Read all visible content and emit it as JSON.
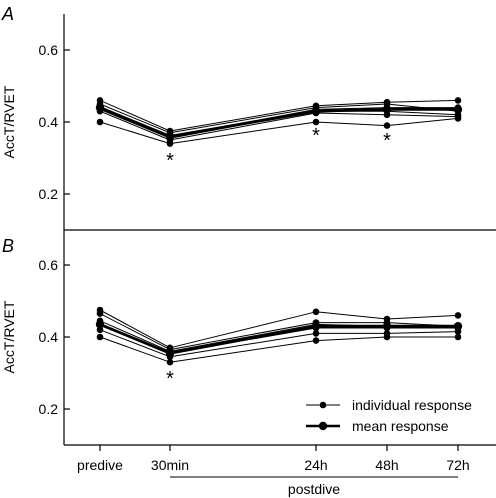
{
  "chart_data": [
    {
      "panel_label": "A",
      "type": "line",
      "ylabel": "AccT/RVET",
      "categories": [
        "predive",
        "30min",
        "24h",
        "48h",
        "72h"
      ],
      "ylim": [
        0.1,
        0.7
      ],
      "yticks": [
        "0.2",
        "0.4",
        "0.6"
      ],
      "ytick_values": [
        0.2,
        0.4,
        0.6
      ],
      "series": [
        {
          "values": [
            0.46,
            0.375,
            0.445,
            0.455,
            0.46
          ]
        },
        {
          "values": [
            0.45,
            0.37,
            0.44,
            0.45,
            0.43
          ]
        },
        {
          "values": [
            0.44,
            0.36,
            0.435,
            0.44,
            0.44
          ]
        },
        {
          "values": [
            0.435,
            0.355,
            0.43,
            0.43,
            0.42
          ]
        },
        {
          "values": [
            0.43,
            0.35,
            0.425,
            0.42,
            0.415
          ]
        },
        {
          "values": [
            0.4,
            0.34,
            0.4,
            0.39,
            0.41
          ]
        }
      ],
      "mean": [
        0.44,
        0.36,
        0.43,
        0.435,
        0.435
      ],
      "significance_marks": [
        {
          "category": "30min",
          "symbol": "*"
        },
        {
          "category": "24h",
          "symbol": "*"
        },
        {
          "category": "48h",
          "symbol": "*"
        }
      ]
    },
    {
      "panel_label": "B",
      "type": "line",
      "ylabel": "AccT/RVET",
      "categories": [
        "predive",
        "30min",
        "24h",
        "48h",
        "72h"
      ],
      "ylim": [
        0.1,
        0.7
      ],
      "yticks": [
        "0.2",
        "0.4",
        "0.6"
      ],
      "ytick_values": [
        0.2,
        0.4,
        0.6
      ],
      "series": [
        {
          "values": [
            0.475,
            0.37,
            0.47,
            0.45,
            0.46
          ]
        },
        {
          "values": [
            0.465,
            0.365,
            0.44,
            0.44,
            0.43
          ]
        },
        {
          "values": [
            0.445,
            0.36,
            0.435,
            0.43,
            0.43
          ]
        },
        {
          "values": [
            0.435,
            0.355,
            0.425,
            0.425,
            0.425
          ]
        },
        {
          "values": [
            0.42,
            0.345,
            0.41,
            0.41,
            0.415
          ]
        },
        {
          "values": [
            0.4,
            0.33,
            0.39,
            0.4,
            0.4
          ]
        }
      ],
      "mean": [
        0.435,
        0.355,
        0.43,
        0.43,
        0.43
      ],
      "significance_marks": [
        {
          "category": "30min",
          "symbol": "*"
        }
      ]
    }
  ],
  "legend": {
    "individual_label": "individual response",
    "mean_label": "mean response"
  },
  "xgroup_label": "postdive"
}
